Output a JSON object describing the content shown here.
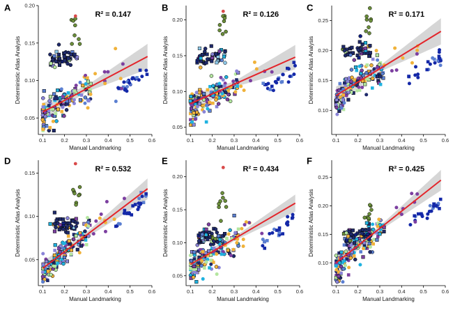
{
  "figure": {
    "xlabel": "Manual Landmarking",
    "ylabel": "Deterministic Atlas Analysis"
  },
  "chart_data": [
    {
      "panel": "A",
      "type": "scatter",
      "r2_label": "R² = 0.147",
      "xlim": [
        0.08,
        0.6
      ],
      "ylim": [
        0.028,
        0.2
      ],
      "xticks": [
        "0.1",
        "0.2",
        "0.3",
        "0.4",
        "0.5",
        "0.6"
      ],
      "xtick_values": [
        0.1,
        0.2,
        0.3,
        0.4,
        0.5,
        0.6
      ],
      "yticks": [
        "0.05",
        "0.10",
        "0.15",
        "0.20"
      ],
      "ytick_values": [
        0.05,
        0.1,
        0.15,
        0.2
      ],
      "fit_line": [
        [
          0.1,
          0.058
        ],
        [
          0.58,
          0.132
        ]
      ],
      "band_width": [
        [
          0.1,
          0.012
        ],
        [
          0.3,
          0.004
        ],
        [
          0.58,
          0.017
        ]
      ],
      "outlier": {
        "x": 0.25,
        "y": 0.186
      },
      "high_cluster_y": 0.13,
      "blue_cluster_y": [
        0.08,
        0.115
      ]
    },
    {
      "panel": "B",
      "type": "scatter",
      "r2_label": "R² = 0.126",
      "xlim": [
        0.08,
        0.6
      ],
      "ylim": [
        0.04,
        0.22
      ],
      "xticks": [
        "0.1",
        "0.2",
        "0.3",
        "0.4",
        "0.5",
        "0.6"
      ],
      "xtick_values": [
        0.1,
        0.2,
        0.3,
        0.4,
        0.5,
        0.6
      ],
      "yticks": [
        "0.05",
        "0.10",
        "0.15",
        "0.20"
      ],
      "ytick_values": [
        0.05,
        0.1,
        0.15,
        0.2
      ],
      "fit_line": [
        [
          0.1,
          0.083
        ],
        [
          0.58,
          0.148
        ]
      ],
      "band_width": [
        [
          0.1,
          0.012
        ],
        [
          0.3,
          0.004
        ],
        [
          0.58,
          0.017
        ]
      ],
      "outlier": {
        "x": 0.25,
        "y": 0.212
      },
      "high_cluster_y": 0.148,
      "blue_cluster_y": [
        0.1,
        0.13
      ]
    },
    {
      "panel": "C",
      "type": "scatter",
      "r2_label": "R² = 0.171",
      "xlim": [
        0.08,
        0.6
      ],
      "ylim": [
        0.06,
        0.275
      ],
      "xticks": [
        "0.1",
        "0.2",
        "0.3",
        "0.4",
        "0.5",
        "0.6"
      ],
      "xtick_values": [
        0.1,
        0.2,
        0.3,
        0.4,
        0.5,
        0.6
      ],
      "yticks": [
        "0.10",
        "0.15",
        "0.20",
        "0.25"
      ],
      "ytick_values": [
        0.1,
        0.15,
        0.2,
        0.25
      ],
      "fit_line": [
        [
          0.1,
          0.125
        ],
        [
          0.58,
          0.232
        ]
      ],
      "band_width": [
        [
          0.1,
          0.015
        ],
        [
          0.3,
          0.005
        ],
        [
          0.58,
          0.022
        ]
      ],
      "outlier": null,
      "high_cluster_y": 0.2,
      "blue_cluster_y": [
        0.15,
        0.19
      ]
    },
    {
      "panel": "D",
      "type": "scatter",
      "r2_label": "R² = 0.532",
      "xlim": [
        0.08,
        0.6
      ],
      "ylim": [
        0.02,
        0.165
      ],
      "xticks": [
        "0.1",
        "0.2",
        "0.3",
        "0.4",
        "0.5",
        "0.6"
      ],
      "xtick_values": [
        0.1,
        0.2,
        0.3,
        0.4,
        0.5,
        0.6
      ],
      "yticks": [
        "0.05",
        "0.10",
        "0.15"
      ],
      "ytick_values": [
        0.05,
        0.1,
        0.15
      ],
      "fit_line": [
        [
          0.1,
          0.04
        ],
        [
          0.58,
          0.132
        ]
      ],
      "band_width": [
        [
          0.1,
          0.008
        ],
        [
          0.3,
          0.003
        ],
        [
          0.58,
          0.012
        ]
      ],
      "outlier": {
        "x": 0.25,
        "y": 0.161
      },
      "high_cluster_y": 0.09,
      "blue_cluster_y": [
        0.09,
        0.125
      ]
    },
    {
      "panel": "E",
      "type": "scatter",
      "r2_label": "R² = 0.434",
      "xlim": [
        0.08,
        0.6
      ],
      "ylim": [
        0.035,
        0.225
      ],
      "xticks": [
        "0.1",
        "0.2",
        "0.3",
        "0.4",
        "0.5",
        "0.6"
      ],
      "xtick_values": [
        0.1,
        0.2,
        0.3,
        0.4,
        0.5,
        0.6
      ],
      "yticks": [
        "0.05",
        "0.10",
        "0.15",
        "0.20"
      ],
      "ytick_values": [
        0.05,
        0.1,
        0.15,
        0.2
      ],
      "fit_line": [
        [
          0.1,
          0.067
        ],
        [
          0.58,
          0.16
        ]
      ],
      "band_width": [
        [
          0.1,
          0.009
        ],
        [
          0.3,
          0.003
        ],
        [
          0.58,
          0.013
        ]
      ],
      "outlier": {
        "x": 0.25,
        "y": 0.214
      },
      "high_cluster_y": 0.11,
      "blue_cluster_y": [
        0.1,
        0.14
      ]
    },
    {
      "panel": "F",
      "type": "scatter",
      "r2_label": "R² = 0.425",
      "xlim": [
        0.08,
        0.6
      ],
      "ylim": [
        0.06,
        0.28
      ],
      "xticks": [
        "0.1",
        "0.2",
        "0.3",
        "0.4",
        "0.5",
        "0.6"
      ],
      "xtick_values": [
        0.1,
        0.2,
        0.3,
        0.4,
        0.5,
        0.6
      ],
      "yticks": [
        "0.10",
        "0.15",
        "0.20",
        "0.25"
      ],
      "ytick_values": [
        0.1,
        0.15,
        0.2,
        0.25
      ],
      "fit_line": [
        [
          0.1,
          0.1
        ],
        [
          0.58,
          0.245
        ]
      ],
      "band_width": [
        [
          0.1,
          0.012
        ],
        [
          0.3,
          0.004
        ],
        [
          0.58,
          0.018
        ]
      ],
      "outlier": null,
      "high_cluster_y": 0.15,
      "blue_cluster_y": [
        0.16,
        0.21
      ]
    }
  ],
  "colors": {
    "fit_line": "#e3252b",
    "confidence_band": "#c8c8c8",
    "outlier": "#d94a4a",
    "group_colors": [
      "#1fb2e0",
      "#f0b23a",
      "#8a84d8",
      "#b4e6a0",
      "#1f2a6b",
      "#5b7fd1",
      "#7c3fa0",
      "#6b8e3a",
      "#102080",
      "#8ec8e8"
    ],
    "blue_cluster": "#1428a8"
  }
}
